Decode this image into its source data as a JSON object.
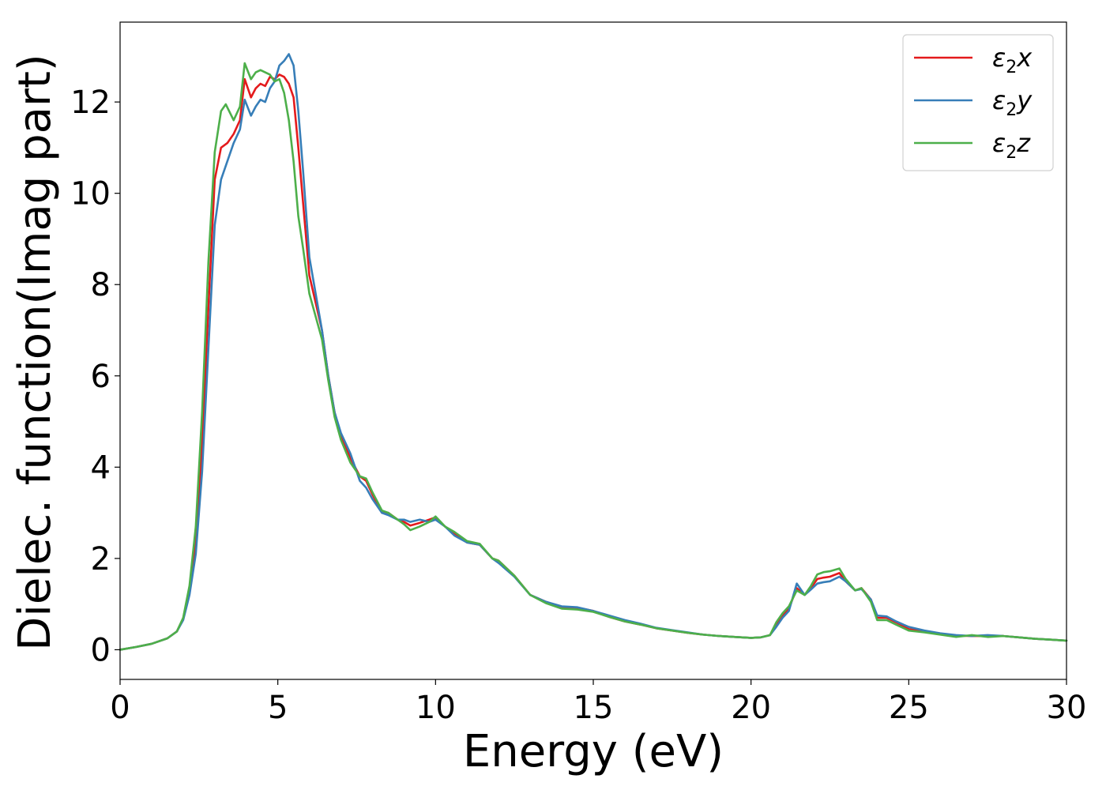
{
  "chart_data": {
    "type": "line",
    "xlabel": "Energy (eV)",
    "ylabel": "Dielec. function(Imag part)",
    "xlim": [
      0,
      30
    ],
    "ylim": [
      -0.65,
      13.75
    ],
    "xticks": [
      0,
      5,
      10,
      15,
      20,
      25,
      30
    ],
    "yticks": [
      0,
      2,
      4,
      6,
      8,
      10,
      12
    ],
    "grid": false,
    "legend_position": "top-right",
    "series": [
      {
        "name": "ε2x",
        "legend": {
          "symbol": "ε",
          "sub": "2",
          "axis": "x"
        },
        "color": "#e41a1c",
        "x": [
          0,
          0.5,
          1.0,
          1.5,
          1.8,
          2.0,
          2.2,
          2.4,
          2.6,
          2.8,
          3.0,
          3.2,
          3.4,
          3.6,
          3.8,
          3.95,
          4.15,
          4.3,
          4.45,
          4.6,
          4.75,
          4.9,
          5.05,
          5.2,
          5.35,
          5.5,
          5.65,
          5.8,
          6.0,
          6.2,
          6.4,
          6.6,
          6.8,
          7.0,
          7.3,
          7.6,
          7.8,
          8.0,
          8.3,
          8.5,
          8.8,
          9.0,
          9.2,
          9.5,
          9.8,
          10.0,
          10.3,
          10.6,
          11.0,
          11.4,
          11.8,
          12.0,
          12.5,
          13.0,
          13.5,
          14.0,
          14.5,
          15.0,
          15.5,
          16.0,
          16.5,
          17.0,
          17.5,
          18.0,
          18.5,
          19.0,
          19.5,
          20.0,
          20.3,
          20.6,
          20.8,
          21.0,
          21.2,
          21.45,
          21.7,
          21.9,
          22.1,
          22.3,
          22.5,
          22.8,
          23.0,
          23.3,
          23.5,
          23.8,
          24.0,
          24.3,
          24.6,
          25.0,
          25.5,
          26.0,
          26.5,
          27.0,
          27.5,
          28.0,
          28.5,
          29.0,
          29.5,
          30.0
        ],
        "values": [
          0.0,
          0.06,
          0.13,
          0.25,
          0.4,
          0.68,
          1.3,
          2.4,
          4.5,
          7.5,
          10.3,
          11.0,
          11.1,
          11.3,
          11.6,
          12.5,
          12.1,
          12.3,
          12.4,
          12.35,
          12.55,
          12.5,
          12.6,
          12.55,
          12.4,
          12.1,
          11.0,
          9.8,
          8.2,
          7.6,
          7.0,
          6.0,
          5.2,
          4.7,
          4.2,
          3.8,
          3.7,
          3.4,
          3.0,
          3.0,
          2.85,
          2.8,
          2.72,
          2.78,
          2.85,
          2.9,
          2.7,
          2.55,
          2.35,
          2.3,
          2.0,
          1.95,
          1.62,
          1.2,
          1.05,
          0.93,
          0.92,
          0.85,
          0.72,
          0.62,
          0.55,
          0.47,
          0.42,
          0.37,
          0.33,
          0.3,
          0.28,
          0.26,
          0.27,
          0.32,
          0.55,
          0.75,
          0.9,
          1.35,
          1.2,
          1.35,
          1.55,
          1.58,
          1.6,
          1.68,
          1.5,
          1.3,
          1.35,
          1.1,
          0.7,
          0.7,
          0.6,
          0.45,
          0.4,
          0.35,
          0.31,
          0.3,
          0.3,
          0.3,
          0.27,
          0.24,
          0.22,
          0.2
        ]
      },
      {
        "name": "ε2y",
        "legend": {
          "symbol": "ε",
          "sub": "2",
          "axis": "y"
        },
        "color": "#377eb8",
        "x": [
          0,
          0.5,
          1.0,
          1.5,
          1.8,
          2.0,
          2.2,
          2.4,
          2.6,
          2.8,
          3.0,
          3.2,
          3.4,
          3.6,
          3.8,
          3.95,
          4.15,
          4.3,
          4.45,
          4.6,
          4.75,
          4.9,
          5.05,
          5.2,
          5.35,
          5.5,
          5.65,
          5.8,
          6.0,
          6.2,
          6.4,
          6.6,
          6.8,
          7.0,
          7.3,
          7.6,
          7.8,
          8.0,
          8.3,
          8.5,
          8.8,
          9.0,
          9.2,
          9.5,
          9.8,
          10.0,
          10.3,
          10.6,
          11.0,
          11.4,
          11.8,
          12.0,
          12.5,
          13.0,
          13.5,
          14.0,
          14.5,
          15.0,
          15.5,
          16.0,
          16.5,
          17.0,
          17.5,
          18.0,
          18.5,
          19.0,
          19.5,
          20.0,
          20.3,
          20.6,
          20.8,
          21.0,
          21.2,
          21.45,
          21.7,
          21.9,
          22.1,
          22.3,
          22.5,
          22.8,
          23.0,
          23.3,
          23.5,
          23.8,
          24.0,
          24.3,
          24.6,
          25.0,
          25.5,
          26.0,
          26.5,
          27.0,
          27.5,
          28.0,
          28.5,
          29.0,
          29.5,
          30.0
        ],
        "values": [
          0.0,
          0.06,
          0.13,
          0.25,
          0.4,
          0.65,
          1.2,
          2.1,
          3.9,
          6.6,
          9.3,
          10.3,
          10.7,
          11.1,
          11.4,
          12.05,
          11.7,
          11.9,
          12.05,
          12.0,
          12.3,
          12.45,
          12.8,
          12.9,
          13.05,
          12.8,
          11.8,
          10.5,
          8.6,
          7.8,
          7.0,
          6.0,
          5.2,
          4.75,
          4.3,
          3.7,
          3.55,
          3.3,
          3.0,
          2.95,
          2.85,
          2.85,
          2.8,
          2.85,
          2.8,
          2.85,
          2.7,
          2.5,
          2.35,
          2.3,
          2.0,
          1.9,
          1.6,
          1.2,
          1.05,
          0.95,
          0.93,
          0.85,
          0.75,
          0.65,
          0.57,
          0.48,
          0.43,
          0.38,
          0.33,
          0.3,
          0.28,
          0.26,
          0.27,
          0.32,
          0.5,
          0.7,
          0.85,
          1.45,
          1.2,
          1.32,
          1.45,
          1.48,
          1.5,
          1.6,
          1.5,
          1.3,
          1.33,
          1.1,
          0.75,
          0.73,
          0.62,
          0.5,
          0.42,
          0.36,
          0.32,
          0.3,
          0.32,
          0.3,
          0.27,
          0.24,
          0.22,
          0.2
        ]
      },
      {
        "name": "ε2z",
        "legend": {
          "symbol": "ε",
          "sub": "2",
          "axis": "z"
        },
        "color": "#4daf4a",
        "x": [
          0,
          0.5,
          1.0,
          1.5,
          1.8,
          2.0,
          2.2,
          2.4,
          2.6,
          2.8,
          3.0,
          3.2,
          3.35,
          3.6,
          3.8,
          3.95,
          4.15,
          4.3,
          4.45,
          4.6,
          4.75,
          4.9,
          5.05,
          5.2,
          5.35,
          5.5,
          5.65,
          5.8,
          6.0,
          6.2,
          6.4,
          6.6,
          6.8,
          7.0,
          7.3,
          7.6,
          7.8,
          8.0,
          8.3,
          8.5,
          8.8,
          9.0,
          9.2,
          9.5,
          9.8,
          10.0,
          10.3,
          10.6,
          11.0,
          11.4,
          11.8,
          12.0,
          12.5,
          13.0,
          13.5,
          14.0,
          14.5,
          15.0,
          15.5,
          16.0,
          16.5,
          17.0,
          17.5,
          18.0,
          18.5,
          19.0,
          19.5,
          20.0,
          20.3,
          20.6,
          20.8,
          21.0,
          21.2,
          21.45,
          21.7,
          21.9,
          22.1,
          22.3,
          22.5,
          22.8,
          23.0,
          23.3,
          23.5,
          23.8,
          24.0,
          24.3,
          24.6,
          25.0,
          25.5,
          26.0,
          26.5,
          27.0,
          27.5,
          28.0,
          28.5,
          29.0,
          29.5,
          30.0
        ],
        "values": [
          0.0,
          0.06,
          0.13,
          0.25,
          0.4,
          0.7,
          1.4,
          2.7,
          5.2,
          8.5,
          10.9,
          11.8,
          11.95,
          11.6,
          11.9,
          12.85,
          12.5,
          12.65,
          12.7,
          12.65,
          12.6,
          12.45,
          12.5,
          12.2,
          11.6,
          10.7,
          9.5,
          8.8,
          7.8,
          7.3,
          6.8,
          5.9,
          5.1,
          4.6,
          4.1,
          3.8,
          3.75,
          3.45,
          3.05,
          3.0,
          2.85,
          2.75,
          2.62,
          2.7,
          2.8,
          2.92,
          2.7,
          2.58,
          2.38,
          2.32,
          2.0,
          1.95,
          1.62,
          1.2,
          1.02,
          0.9,
          0.88,
          0.83,
          0.72,
          0.62,
          0.55,
          0.47,
          0.42,
          0.37,
          0.33,
          0.3,
          0.28,
          0.26,
          0.27,
          0.32,
          0.6,
          0.8,
          0.95,
          1.3,
          1.2,
          1.4,
          1.65,
          1.7,
          1.72,
          1.78,
          1.55,
          1.3,
          1.35,
          1.05,
          0.65,
          0.65,
          0.55,
          0.42,
          0.38,
          0.33,
          0.28,
          0.32,
          0.28,
          0.3,
          0.27,
          0.24,
          0.22,
          0.2
        ]
      }
    ]
  }
}
